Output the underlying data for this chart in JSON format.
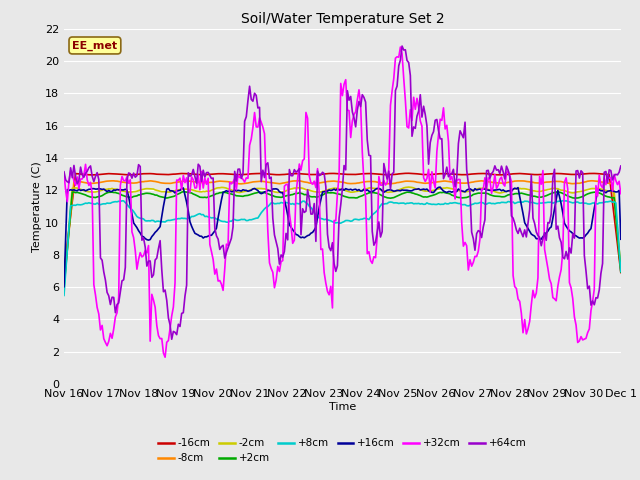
{
  "title": "Soil/Water Temperature Set 2",
  "xlabel": "Time",
  "ylabel": "Temperature (C)",
  "ylim": [
    0,
    22
  ],
  "yticks": [
    0,
    2,
    4,
    6,
    8,
    10,
    12,
    14,
    16,
    18,
    20,
    22
  ],
  "annotation": "EE_met",
  "fig_facecolor": "#e8e8e8",
  "ax_facecolor": "#e8e8e8",
  "grid_color": "#ffffff",
  "series": [
    {
      "label": "-16cm",
      "color": "#cc0000",
      "linewidth": 1.2
    },
    {
      "label": "-8cm",
      "color": "#ff8800",
      "linewidth": 1.2
    },
    {
      "label": "-2cm",
      "color": "#cccc00",
      "linewidth": 1.2
    },
    {
      "label": "+2cm",
      "color": "#00aa00",
      "linewidth": 1.2
    },
    {
      "label": "+8cm",
      "color": "#00cccc",
      "linewidth": 1.2
    },
    {
      "label": "+16cm",
      "color": "#000099",
      "linewidth": 1.2
    },
    {
      "label": "+32cm",
      "color": "#ff00ff",
      "linewidth": 1.2
    },
    {
      "label": "+64cm",
      "color": "#9900cc",
      "linewidth": 1.2
    }
  ],
  "xtick_labels": [
    "Nov 16",
    "Nov 17",
    "Nov 18",
    "Nov 19",
    "Nov 20",
    "Nov 21",
    "Nov 22",
    "Nov 23",
    "Nov 24",
    "Nov 25",
    "Nov 26",
    "Nov 27",
    "Nov 28",
    "Nov 29",
    "Nov 30",
    "Dec 1"
  ],
  "n_points": 337
}
